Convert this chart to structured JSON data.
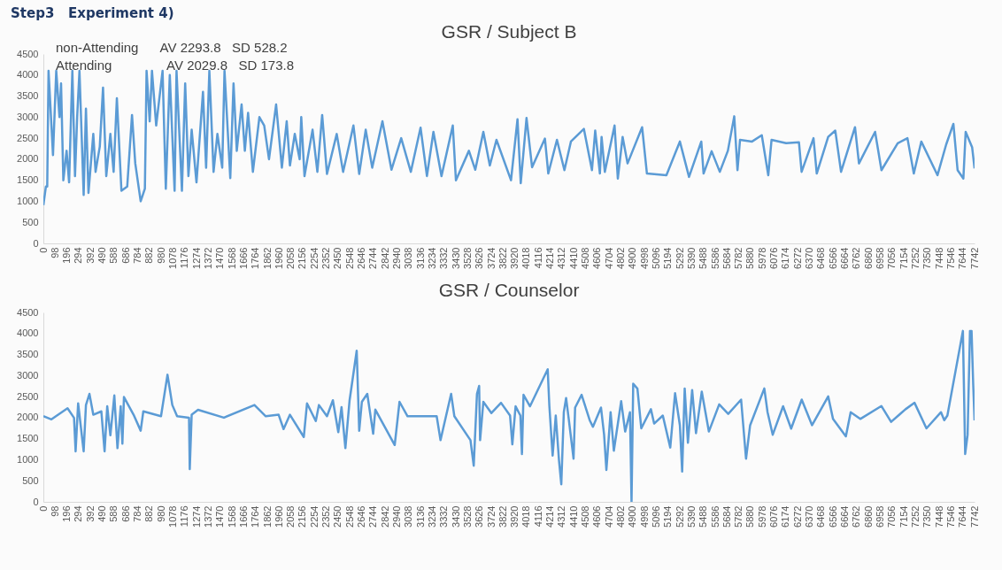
{
  "chart_data": [
    {
      "type": "line",
      "title": "GSR / Subject B",
      "annotations": [
        "Step3   Experiment 4)",
        "non-Attending      AV 2293.8   SD 528.2",
        "Attending               AV 2029.8   SD 173.8"
      ],
      "xlim": [
        0,
        7742
      ],
      "xticks": [
        0,
        98,
        196,
        294,
        392,
        490,
        588,
        686,
        784,
        882,
        980,
        1078,
        1176,
        1274,
        1372,
        1470,
        1568,
        1666,
        1764,
        1862,
        1960,
        2058,
        2156,
        2254,
        2352,
        2450,
        2548,
        2646,
        2744,
        2842,
        2940,
        3038,
        3136,
        3234,
        3332,
        3430,
        3528,
        3626,
        3724,
        3822,
        3920,
        4018,
        4116,
        4214,
        4312,
        4410,
        4508,
        4606,
        4704,
        4802,
        4900,
        4998,
        5096,
        5194,
        5292,
        5390,
        5488,
        5586,
        5684,
        5782,
        5880,
        5978,
        6076,
        6174,
        6272,
        6370,
        6468,
        6566,
        6664,
        6762,
        6860,
        6958,
        7056,
        7154,
        7252,
        7350,
        7448,
        7546,
        7644,
        7742
      ],
      "ylim": [
        0,
        4500
      ],
      "yticks": [
        0,
        500,
        1000,
        1500,
        2000,
        2500,
        3000,
        3500,
        4000,
        4500
      ],
      "series": [
        {
          "color": "#5b9bd5",
          "x": [
            0,
            21,
            32,
            43,
            80,
            107,
            134,
            147,
            166,
            193,
            214,
            241,
            263,
            281,
            300,
            335,
            354,
            375,
            415,
            434,
            469,
            496,
            523,
            557,
            584,
            611,
            649,
            697,
            710,
            737,
            764,
            809,
            844,
            858,
            884,
            903,
            938,
            991,
            1018,
            1051,
            1091,
            1107,
            1152,
            1179,
            1206,
            1233,
            1273,
            1327,
            1353,
            1380,
            1415,
            1447,
            1487,
            1506,
            1554,
            1581,
            1608,
            1648,
            1675,
            1702,
            1742,
            1796,
            1836,
            1876,
            1935,
            1983,
            2023,
            2050,
            2090,
            2131,
            2144,
            2171,
            2238,
            2278,
            2318,
            2358,
            2439,
            2492,
            2578,
            2626,
            2680,
            2734,
            2819,
            2894,
            2975,
            3055,
            3136,
            3189,
            3243,
            3310,
            3404,
            3430,
            3538,
            3591,
            3658,
            3712,
            3767,
            3888,
            3942,
            3969,
            4017,
            4063,
            4170,
            4198,
            4270,
            4332,
            4386,
            4494,
            4561,
            4588,
            4627,
            4641,
            4668,
            4749,
            4776,
            4816,
            4857,
            4978,
            5018,
            5180,
            5292,
            5368,
            5470,
            5489,
            5556,
            5624,
            5691,
            5744,
            5771,
            5792,
            5892,
            5973,
            6027,
            6054,
            6175,
            6282,
            6304,
            6403,
            6430,
            6525,
            6584,
            6632,
            6748,
            6781,
            6915,
            6968,
            7103,
            7184,
            7237,
            7299,
            7434,
            7506,
            7566,
            7601,
            7649,
            7668,
            7722,
            7742
          ],
          "values": [
            910,
            1350,
            1350,
            4100,
            2100,
            4100,
            3000,
            3800,
            1500,
            2200,
            1450,
            4100,
            1600,
            3000,
            4100,
            1150,
            3200,
            1200,
            2600,
            1700,
            2300,
            3700,
            1600,
            2600,
            1700,
            3450,
            1250,
            1350,
            1900,
            3050,
            1900,
            1000,
            1300,
            4100,
            2900,
            4100,
            2800,
            4100,
            1300,
            4000,
            1250,
            4100,
            1250,
            3800,
            1600,
            2700,
            1450,
            3600,
            1800,
            4100,
            1700,
            2600,
            1800,
            4100,
            1550,
            3800,
            2200,
            3300,
            2200,
            3100,
            1700,
            3000,
            2800,
            2000,
            3300,
            1800,
            2900,
            1850,
            2600,
            2000,
            3000,
            1600,
            2700,
            1700,
            3050,
            1650,
            2600,
            1700,
            2800,
            1650,
            2700,
            1800,
            2900,
            1750,
            2500,
            1700,
            2750,
            1600,
            2650,
            1600,
            2800,
            1500,
            2200,
            1750,
            2650,
            1850,
            2460,
            1500,
            2950,
            1430,
            2980,
            1810,
            2490,
            1660,
            2460,
            1740,
            2420,
            2720,
            1740,
            2680,
            1660,
            2530,
            1700,
            2800,
            1540,
            2530,
            1900,
            2760,
            1660,
            1620,
            2420,
            1580,
            2420,
            1660,
            2190,
            1700,
            2200,
            3020,
            1740,
            2460,
            2420,
            2570,
            1620,
            2460,
            2380,
            2400,
            1700,
            2500,
            1660,
            2530,
            2680,
            1700,
            2760,
            1900,
            2650,
            1740,
            2380,
            2500,
            1660,
            2420,
            1620,
            2350,
            2840,
            1740,
            1540,
            2650,
            2280,
            1780
          ]
        }
      ]
    },
    {
      "type": "line",
      "title": "GSR / Counselor",
      "xlim": [
        0,
        7742
      ],
      "xticks": [
        0,
        98,
        196,
        294,
        392,
        490,
        588,
        686,
        784,
        882,
        980,
        1078,
        1176,
        1274,
        1372,
        1470,
        1568,
        1666,
        1764,
        1862,
        1960,
        2058,
        2156,
        2254,
        2352,
        2450,
        2548,
        2646,
        2744,
        2842,
        2940,
        3038,
        3136,
        3234,
        3332,
        3430,
        3528,
        3626,
        3724,
        3822,
        3920,
        4018,
        4116,
        4214,
        4312,
        4410,
        4508,
        4606,
        4704,
        4802,
        4900,
        4998,
        5096,
        5194,
        5292,
        5390,
        5488,
        5586,
        5684,
        5782,
        5880,
        5978,
        6076,
        6174,
        6272,
        6370,
        6468,
        6566,
        6664,
        6762,
        6860,
        6958,
        7056,
        7154,
        7252,
        7350,
        7448,
        7546,
        7644,
        7742
      ],
      "ylim": [
        0,
        4500
      ],
      "yticks": [
        0,
        500,
        1000,
        1500,
        2000,
        2500,
        3000,
        3500,
        4000,
        4500
      ],
      "series": [
        {
          "color": "#5b9bd5",
          "x": [
            0,
            67,
            201,
            255,
            268,
            289,
            335,
            354,
            383,
            415,
            482,
            509,
            531,
            557,
            590,
            616,
            643,
            657,
            670,
            750,
            809,
            831,
            978,
            1032,
            1072,
            1112,
            1211,
            1217,
            1233,
            1286,
            1501,
            1755,
            1849,
            1956,
            1997,
            2050,
            2165,
            2192,
            2265,
            2291,
            2358,
            2407,
            2452,
            2479,
            2511,
            2546,
            2605,
            2626,
            2648,
            2693,
            2742,
            2760,
            2921,
            2961,
            3028,
            3270,
            3302,
            3390,
            3417,
            3551,
            3578,
            3605,
            3623,
            3631,
            3658,
            3725,
            3805,
            3880,
            3899,
            3926,
            3966,
            3979,
            3992,
            4046,
            4193,
            4207,
            4234,
            4260,
            4287,
            4306,
            4327,
            4346,
            4368,
            4408,
            4421,
            4475,
            4542,
            4569,
            4636,
            4662,
            4681,
            4716,
            4743,
            4804,
            4837,
            4877,
            4890,
            4904,
            4939,
            4971,
            5051,
            5078,
            5150,
            5212,
            5252,
            5292,
            5311,
            5332,
            5359,
            5394,
            5426,
            5474,
            5533,
            5619,
            5694,
            5801,
            5842,
            5876,
            5994,
            6021,
            6064,
            6150,
            6217,
            6305,
            6391,
            6525,
            6565,
            6672,
            6712,
            6792,
            6967,
            7048,
            7168,
            7243,
            7342,
            7463,
            7490,
            7516,
            7645,
            7664,
            7684,
            7704,
            7717,
            7731,
            7742
          ],
          "values": [
            2034,
            1960,
            2224,
            1996,
            1200,
            2340,
            1200,
            2300,
            2565,
            2070,
            2150,
            1200,
            2270,
            1580,
            2527,
            1275,
            2270,
            1385,
            2490,
            2070,
            1690,
            2150,
            2034,
            3020,
            2300,
            2034,
            1996,
            780,
            2070,
            2186,
            2000,
            2300,
            2034,
            2070,
            1730,
            2070,
            1540,
            2338,
            1920,
            2300,
            2034,
            2414,
            1655,
            2250,
            1275,
            2414,
            3590,
            1690,
            2376,
            2565,
            1617,
            2190,
            1350,
            2376,
            2034,
            2034,
            1465,
            2565,
            2034,
            1465,
            858,
            2565,
            2755,
            1465,
            2376,
            2110,
            2353,
            2050,
            1366,
            2270,
            2050,
            1138,
            2543,
            2270,
            3150,
            2270,
            1100,
            2050,
            987,
            417,
            2130,
            2467,
            1970,
            1025,
            2240,
            2543,
            1940,
            1784,
            2240,
            1594,
            759,
            2130,
            1214,
            2391,
            1670,
            2130,
            0,
            2808,
            2690,
            1746,
            2200,
            1860,
            2050,
            1290,
            2581,
            1820,
            721,
            2694,
            1404,
            2657,
            1632,
            2619,
            1670,
            2315,
            2090,
            2429,
            1025,
            1820,
            2694,
            2130,
            1594,
            2270,
            1740,
            2429,
            1820,
            2505,
            1970,
            1556,
            2130,
            1970,
            2277,
            1900,
            2200,
            2353,
            1746,
            2130,
            1940,
            2050,
            4061,
            1138,
            1590,
            4061,
            4061,
            2770,
            1935
          ]
        }
      ]
    }
  ]
}
